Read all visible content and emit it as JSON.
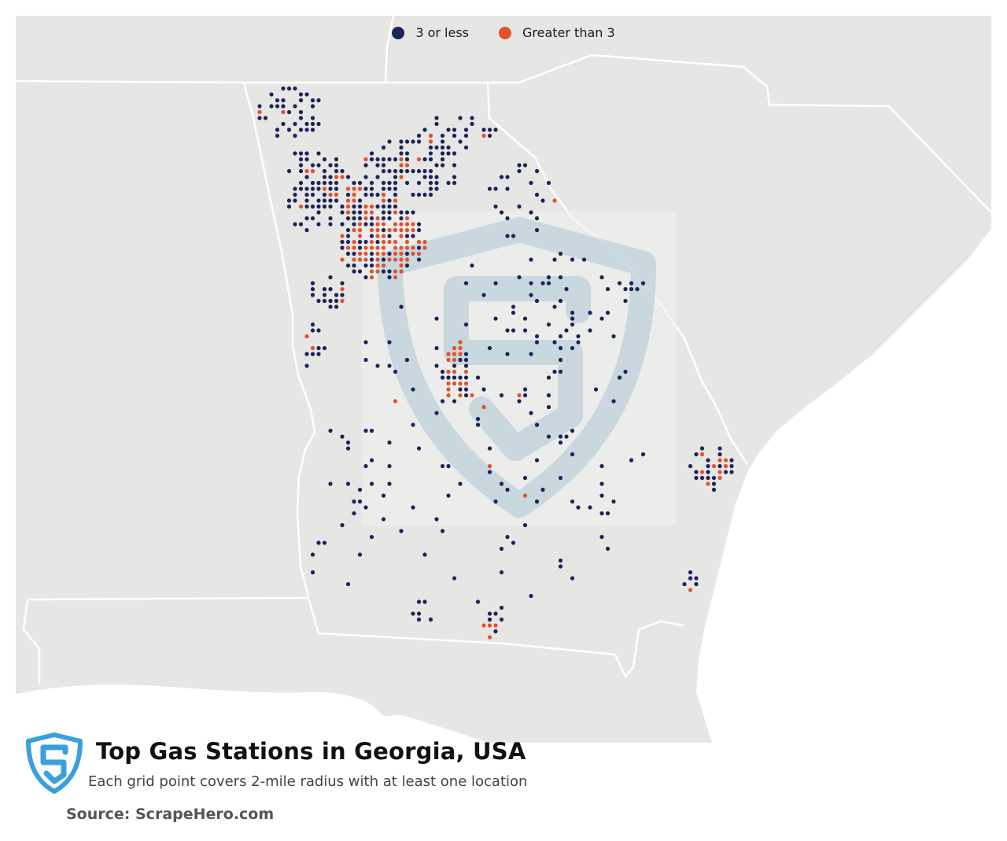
{
  "legend": {
    "items": [
      {
        "label": "3 or less",
        "color": "#1c2359"
      },
      {
        "label": "Greater than 3",
        "color": "#e4512b"
      }
    ]
  },
  "title": "Top Gas Stations in Georgia, USA",
  "subtitle": "Each grid point covers 2-mile radius with at least one location",
  "source": "Source: ScrapeHero.com",
  "map": {
    "region": "Georgia, USA",
    "land_color": "#e6e6e5",
    "water_color": "#ffffff",
    "border_color": "#ffffff",
    "watermark": "scrapehero-shield-logo"
  }
}
